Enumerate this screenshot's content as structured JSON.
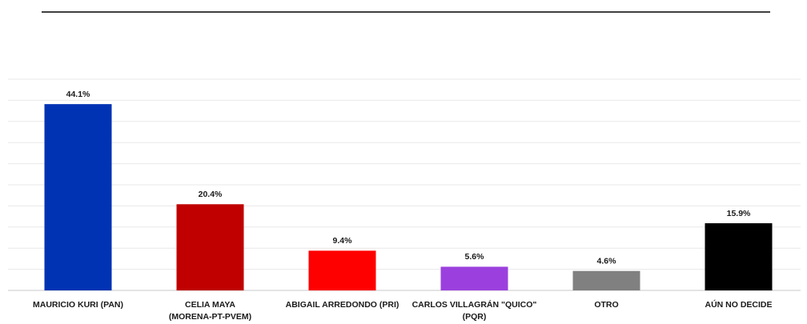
{
  "chart_data": {
    "type": "bar",
    "categories": [
      [
        "MAURICIO KURI (PAN)"
      ],
      [
        "CELIA MAYA",
        "(MORENA-PT-PVEM)"
      ],
      [
        "ABIGAIL ARREDONDO (PRI)"
      ],
      [
        "CARLOS VILLAGRÁN \"QUICO\"",
        "(PQR)"
      ],
      [
        "OTRO"
      ],
      [
        "AÚN NO DECIDE"
      ]
    ],
    "values": [
      44.1,
      20.4,
      9.4,
      5.6,
      4.6,
      15.9
    ],
    "value_labels": [
      "44.1%",
      "20.4%",
      "9.4%",
      "5.6%",
      "4.6%",
      "15.9%"
    ],
    "colors": [
      "#0033b4",
      "#c00000",
      "#ff0000",
      "#9b40de",
      "#808080",
      "#000000"
    ],
    "ylim": [
      0,
      50
    ],
    "yticks": [
      0,
      5,
      10,
      15,
      20,
      25,
      30,
      35,
      40,
      45,
      50
    ],
    "grid": true
  }
}
